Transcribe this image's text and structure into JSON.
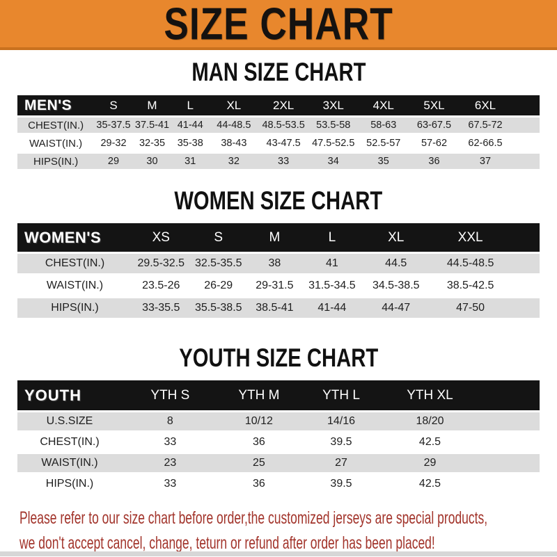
{
  "banner": {
    "title": "SIZE CHART"
  },
  "colors": {
    "banner_bg": "#E8872D",
    "banner_border": "#C9711E",
    "header_bar": "#141414",
    "row_gray": "#DCDCDC",
    "disclaimer_red": "#A2342B"
  },
  "sections": {
    "men": {
      "heading": "MAN SIZE CHART",
      "corner": "MEN'S",
      "columns": [
        "S",
        "M",
        "L",
        "XL",
        "2XL",
        "3XL",
        "4XL",
        "5XL",
        "6XL"
      ],
      "rows": [
        {
          "label": "CHEST(IN.)",
          "values": [
            "35-37.5",
            "37.5-41",
            "41-44",
            "44-48.5",
            "48.5-53.5",
            "53.5-58",
            "58-63",
            "63-67.5",
            "67.5-72"
          ]
        },
        {
          "label": "WAIST(IN.)",
          "values": [
            "29-32",
            "32-35",
            "35-38",
            "38-43",
            "43-47.5",
            "47.5-52.5",
            "52.5-57",
            "57-62",
            "62-66.5"
          ]
        },
        {
          "label": "HIPS(IN.)",
          "values": [
            "29",
            "30",
            "31",
            "32",
            "33",
            "34",
            "35",
            "36",
            "37"
          ]
        }
      ]
    },
    "women": {
      "heading": "WOMEN SIZE CHART",
      "corner": "WOMEN'S",
      "columns": [
        "XS",
        "S",
        "M",
        "L",
        "XL",
        "XXL"
      ],
      "rows": [
        {
          "label": "CHEST(IN.)",
          "values": [
            "29.5-32.5",
            "32.5-35.5",
            "38",
            "41",
            "44.5",
            "44.5-48.5"
          ]
        },
        {
          "label": "WAIST(IN.)",
          "values": [
            "23.5-26",
            "26-29",
            "29-31.5",
            "31.5-34.5",
            "34.5-38.5",
            "38.5-42.5"
          ]
        },
        {
          "label": "HIPS(IN.)",
          "values": [
            "33-35.5",
            "35.5-38.5",
            "38.5-41",
            "41-44",
            "44-47",
            "47-50"
          ]
        }
      ]
    },
    "youth": {
      "heading": "YOUTH SIZE CHART",
      "corner": "YOUTH",
      "columns": [
        "YTH S",
        "YTH M",
        "YTH L",
        "YTH XL"
      ],
      "rows": [
        {
          "label": "U.S.SIZE",
          "values": [
            "8",
            "10/12",
            "14/16",
            "18/20"
          ]
        },
        {
          "label": "CHEST(IN.)",
          "values": [
            "33",
            "36",
            "39.5",
            "42.5"
          ]
        },
        {
          "label": "WAIST(IN.)",
          "values": [
            "23",
            "25",
            "27",
            "29"
          ]
        },
        {
          "label": "HIPS(IN.)",
          "values": [
            "33",
            "36",
            "39.5",
            "42.5"
          ]
        }
      ]
    }
  },
  "disclaimer": {
    "line1": "Please refer to our size chart before order,the customized jerseys are special products,",
    "line2": "we don't accept cancel, change, teturn or refund after order has been placed!"
  }
}
